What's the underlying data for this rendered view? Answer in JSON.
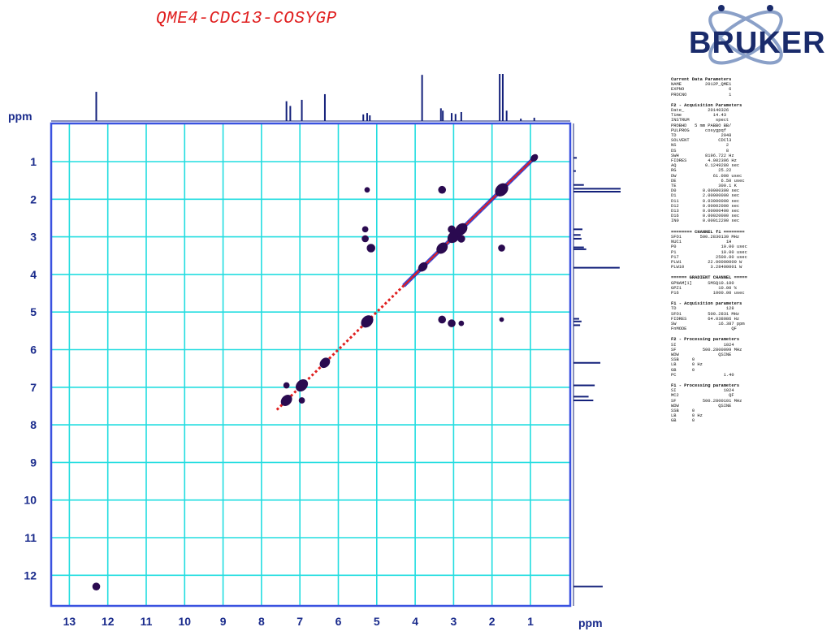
{
  "title": "QME4-CDC13-COSYGP",
  "logo_text": "BRUKER",
  "axis_unit_left": "ppm",
  "axis_unit_bottom": "ppm",
  "colors": {
    "frame": "#3a52e0",
    "grid": "#22dde0",
    "spectrum": "#13207a",
    "peak": "#2a0a50",
    "diagonal_a": "#e02020",
    "diagonal_b": "#2030d0",
    "title": "#e02020"
  },
  "chart_data": {
    "type": "scatter",
    "title": "QME4-CDC13-COSYGP",
    "x_axis": {
      "label": "ppm",
      "min": 0,
      "max": 13,
      "reversed": true,
      "ticks": [
        13,
        12,
        11,
        10,
        9,
        8,
        7,
        6,
        5,
        4,
        3,
        2,
        1
      ]
    },
    "y_axis": {
      "label": "ppm",
      "min": 0,
      "max": 13,
      "reversed": true,
      "ticks": [
        1,
        2,
        3,
        4,
        5,
        6,
        7,
        8,
        9,
        10,
        11,
        12
      ]
    },
    "grid": true,
    "diagonal": {
      "from": [
        7.6,
        7.6
      ],
      "to": [
        0.9,
        0.9
      ]
    },
    "cross_peaks": [
      {
        "x": 12.3,
        "y": 12.3,
        "r": 1.0
      },
      {
        "x": 7.35,
        "y": 6.95,
        "r": 0.8
      },
      {
        "x": 6.95,
        "y": 7.35,
        "r": 0.8
      },
      {
        "x": 5.25,
        "y": 1.75,
        "r": 0.7
      },
      {
        "x": 5.3,
        "y": 2.8,
        "r": 0.8
      },
      {
        "x": 5.3,
        "y": 3.05,
        "r": 0.9
      },
      {
        "x": 5.15,
        "y": 3.3,
        "r": 1.1
      },
      {
        "x": 3.3,
        "y": 1.75,
        "r": 1.0
      },
      {
        "x": 1.75,
        "y": 3.3,
        "r": 0.9
      },
      {
        "x": 3.3,
        "y": 5.2,
        "r": 1.0
      },
      {
        "x": 3.05,
        "y": 5.3,
        "r": 1.0
      },
      {
        "x": 2.8,
        "y": 5.3,
        "r": 0.7
      },
      {
        "x": 1.75,
        "y": 5.2,
        "r": 0.6
      },
      {
        "x": 2.8,
        "y": 3.05,
        "r": 1.0
      },
      {
        "x": 3.05,
        "y": 2.8,
        "r": 1.0
      }
    ],
    "diagonal_peaks": [
      {
        "x": 7.35,
        "y": 7.35,
        "r": 1.2
      },
      {
        "x": 6.95,
        "y": 6.95,
        "r": 1.3
      },
      {
        "x": 6.35,
        "y": 6.35,
        "r": 1.1
      },
      {
        "x": 5.25,
        "y": 5.25,
        "r": 1.3
      },
      {
        "x": 3.8,
        "y": 3.8,
        "r": 1.0
      },
      {
        "x": 3.3,
        "y": 3.3,
        "r": 1.2
      },
      {
        "x": 3.0,
        "y": 3.0,
        "r": 1.3
      },
      {
        "x": 2.8,
        "y": 2.8,
        "r": 1.3
      },
      {
        "x": 1.75,
        "y": 1.75,
        "r": 1.4
      },
      {
        "x": 0.9,
        "y": 0.9,
        "r": 0.8
      }
    ],
    "projection_1d": [
      {
        "ppm": 12.3,
        "h": 0.62
      },
      {
        "ppm": 7.35,
        "h": 0.42
      },
      {
        "ppm": 7.25,
        "h": 0.32
      },
      {
        "ppm": 6.95,
        "h": 0.45
      },
      {
        "ppm": 6.35,
        "h": 0.57
      },
      {
        "ppm": 5.35,
        "h": 0.14
      },
      {
        "ppm": 5.25,
        "h": 0.17
      },
      {
        "ppm": 5.18,
        "h": 0.12
      },
      {
        "ppm": 3.82,
        "h": 0.98
      },
      {
        "ppm": 3.33,
        "h": 0.27
      },
      {
        "ppm": 3.28,
        "h": 0.22
      },
      {
        "ppm": 3.05,
        "h": 0.17
      },
      {
        "ppm": 2.95,
        "h": 0.15
      },
      {
        "ppm": 2.8,
        "h": 0.19
      },
      {
        "ppm": 1.8,
        "h": 1.0
      },
      {
        "ppm": 1.72,
        "h": 1.0
      },
      {
        "ppm": 1.62,
        "h": 0.22
      },
      {
        "ppm": 1.25,
        "h": 0.05
      },
      {
        "ppm": 0.9,
        "h": 0.07
      }
    ]
  },
  "param_blocks": [
    [
      "Current Data Parameters",
      "NAME         2012P_QME1",
      "EXPNO                 6",
      "PROCNO                1"
    ],
    [
      "F2 - Acquisition Parameters",
      "Date_         20140326",
      "Time            14.43",
      "INSTRUM          spect",
      "PROBHD   5 mm PABBO BB/",
      "PULPROG      cosygpqf",
      "TD                 2048",
      "SOLVENT           CDCl3",
      "NS                   2",
      "DS                   8",
      "SWH          8196.722 Hz",
      "FIDRES        4.002306 Hz",
      "AQ           0.1249280 sec",
      "RG                25.22",
      "DW              61.000 usec",
      "DE                 6.50 usec",
      "TE                300.1 K",
      "D0          0.00000300 sec",
      "D1          2.00000000 sec",
      "D11         0.03000000 sec",
      "D12         0.00002000 sec",
      "D13         0.00000400 sec",
      "D16         0.00020000 sec",
      "IN0         0.00012200 sec"
    ],
    [
      "======== CHANNEL f1 ========",
      "SFO1       500.2830139 MHz",
      "NUC1                 1H",
      "P0                 10.00 usec",
      "P1                 10.00 usec",
      "P17              2500.00 usec",
      "PLW1          22.00000000 W",
      "PLW10          3.28400001 W"
    ],
    [
      "====== GRADIENT CHANNEL =====",
      "GPNAM[1]      SMSQ10.100",
      "GPZ1              10.00 %",
      "P16             1000.00 usec"
    ],
    [
      "F1 - Acquisition parameters",
      "TD                   128",
      "SFO1          500.2831 MHz",
      "FIDRES        64.038086 Hz",
      "SW                16.387 ppm",
      "FnMODE                 QF"
    ],
    [
      "F2 - Processing parameters",
      "SI                  1024",
      "SF          500.2800099 MHz",
      "WDW               QSINE",
      "SSB     0",
      "LB      0 Hz",
      "GB      0",
      "PC                  1.40"
    ],
    [
      "F1 - Processing parameters",
      "SI                  1024",
      "MC2                   QF",
      "SF          500.2800101 MHz",
      "WDW               QSINE",
      "SSB     0",
      "LB      0 Hz",
      "GB      0"
    ]
  ]
}
